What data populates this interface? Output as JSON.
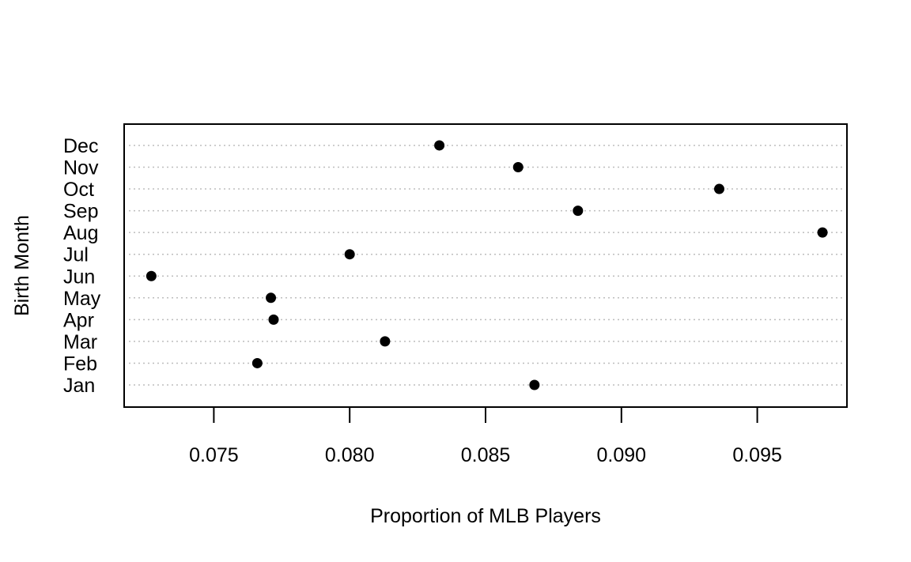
{
  "chart_data": {
    "type": "scatter",
    "subtype": "dotchart",
    "title": "",
    "xlabel": "Proportion of MLB Players",
    "ylabel": "Birth Month",
    "xlim": [
      0.0717,
      0.0983
    ],
    "xticks": [
      "0.075",
      "0.080",
      "0.085",
      "0.090",
      "0.095"
    ],
    "xtick_values": [
      0.075,
      0.08,
      0.085,
      0.09,
      0.095
    ],
    "categories": [
      "Jan",
      "Feb",
      "Mar",
      "Apr",
      "May",
      "Jun",
      "Jul",
      "Aug",
      "Sep",
      "Oct",
      "Nov",
      "Dec"
    ],
    "values": [
      0.0868,
      0.0766,
      0.0813,
      0.0772,
      0.0771,
      0.0727,
      0.08,
      0.0974,
      0.0884,
      0.0936,
      0.0862,
      0.0833
    ],
    "grid": "horizontal dotted guide lines",
    "legend": "none",
    "colors": {
      "points": "#000000",
      "guides": "#bdbdbd",
      "frame": "#000000"
    }
  }
}
